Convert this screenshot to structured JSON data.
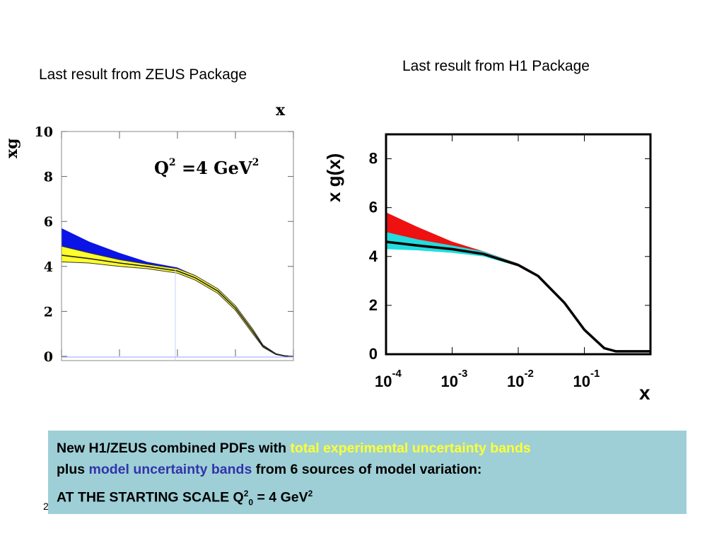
{
  "captions": {
    "zeus": "Last result from ZEUS Package",
    "h1": "Last result from H1 Package"
  },
  "note": {
    "line1_prefix": "New H1/ZEUS combined PDFs with ",
    "line1_highlight": "total experimental uncertainty bands",
    "line2_prefix": "plus ",
    "line2_highlight": "model uncertainty bands",
    "line2_suffix": " from 6 sources of model variation:",
    "line3_main": "AT THE STARTING SCALE Q",
    "line3_sup1": "2",
    "line3_sub": "0",
    "line3_mid": " = 4 GeV",
    "line3_sup2": "2",
    "bg_color": "#9ecfd6",
    "highlight_yellow": "#ffff33",
    "highlight_blue": "#3333aa"
  },
  "page_number": "2",
  "chart_data": [
    {
      "type": "line",
      "name": "ZEUS",
      "annotation_main": "Q",
      "annotation_sup1": "2",
      "annotation_rest": " =4 GeV",
      "annotation_sup2": "2",
      "xlabel": "x",
      "ylabel": "xg",
      "x_scale": "log",
      "xlim": [
        0.0001,
        1
      ],
      "ylim": [
        0,
        10
      ],
      "yticks": [
        "0",
        "2",
        "4",
        "6",
        "8",
        "10"
      ],
      "colors": {
        "model_band": "#0a14e6",
        "exp_band": "#ffff2a",
        "central": "#222222"
      },
      "series": [
        {
          "x": [
            0.0001,
            0.0003,
            0.001,
            0.003,
            0.01,
            0.02,
            0.05,
            0.1,
            0.2,
            0.3,
            0.5,
            0.7,
            1
          ],
          "central": [
            4.5,
            4.35,
            4.15,
            4.0,
            3.8,
            3.5,
            2.9,
            2.15,
            1.1,
            0.45,
            0.1,
            0.02,
            0.0
          ],
          "exp_low": [
            4.2,
            4.15,
            4.0,
            3.9,
            3.7,
            3.4,
            2.8,
            2.05,
            1.0,
            0.4,
            0.08,
            0.01,
            0.0
          ],
          "exp_high": [
            4.9,
            4.6,
            4.3,
            4.1,
            3.9,
            3.6,
            3.0,
            2.25,
            1.2,
            0.5,
            0.12,
            0.03,
            0.0
          ],
          "model_high": [
            5.7,
            5.1,
            4.6,
            4.2,
            3.95,
            3.6,
            3.0,
            2.25,
            1.2,
            0.5,
            0.12,
            0.03,
            0.0
          ]
        }
      ]
    },
    {
      "type": "line",
      "name": "H1",
      "xlabel": "x",
      "ylabel": "x g(x)",
      "x_scale": "log",
      "xlim": [
        0.0001,
        1
      ],
      "ylim": [
        0,
        9
      ],
      "yticks": [
        "0",
        "2",
        "4",
        "6",
        "8"
      ],
      "xticks": [
        {
          "base": "10",
          "exp": "-4"
        },
        {
          "base": "10",
          "exp": "-3"
        },
        {
          "base": "10",
          "exp": "-2"
        },
        {
          "base": "10",
          "exp": "-1"
        }
      ],
      "colors": {
        "model_band": "#ee1111",
        "exp_band": "#22dddd",
        "central": "#000000"
      },
      "series": [
        {
          "x": [
            0.0001,
            0.0003,
            0.001,
            0.003,
            0.01,
            0.02,
            0.05,
            0.1,
            0.2,
            0.3,
            0.5,
            0.7,
            1
          ],
          "central": [
            4.6,
            4.45,
            4.3,
            4.1,
            3.65,
            3.2,
            2.1,
            1.0,
            0.25,
            0.12,
            0.12,
            0.12,
            0.12
          ],
          "exp_low": [
            4.3,
            4.25,
            4.15,
            4.0,
            3.6,
            3.15,
            2.05,
            0.97,
            0.23,
            0.11,
            0.11,
            0.11,
            0.11
          ],
          "exp_high": [
            5.0,
            4.7,
            4.45,
            4.2,
            3.7,
            3.25,
            2.15,
            1.03,
            0.27,
            0.13,
            0.13,
            0.13,
            0.13
          ],
          "model_high": [
            5.8,
            5.2,
            4.6,
            4.2,
            3.7,
            3.25,
            2.15,
            1.03,
            0.27,
            0.13,
            0.13,
            0.13,
            0.13
          ]
        }
      ]
    }
  ]
}
